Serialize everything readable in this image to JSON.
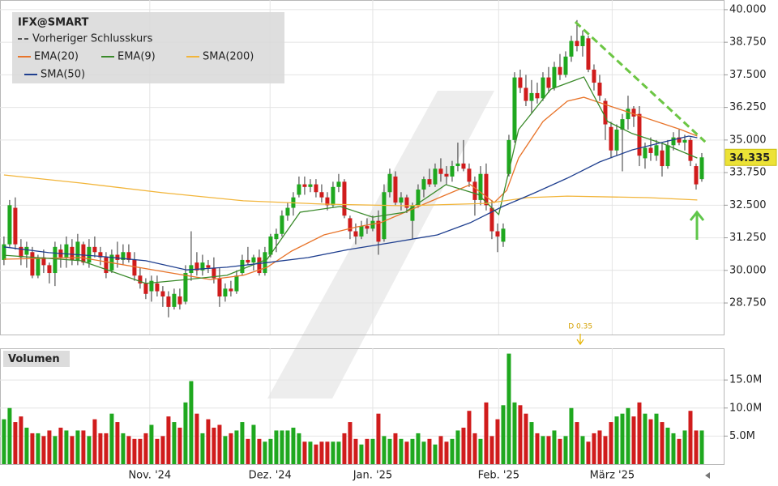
{
  "chart_data": {
    "type": "candlestick",
    "title": "IFX@SMART",
    "up_color": "#1fa81f",
    "down_color": "#d01c1c",
    "xlim": [
      -0.7,
      126.86
    ],
    "xticks": [
      {
        "value": 25.7,
        "label": "Nov. '24"
      },
      {
        "value": 46.9,
        "label": "Dez. '24"
      },
      {
        "value": 65,
        "label": "Jan. '25"
      },
      {
        "value": 87.2,
        "label": "Feb. '25"
      },
      {
        "value": 107.2,
        "label": "März '25"
      }
    ],
    "ylim": [
      27.54,
      40.37
    ],
    "yticks": [
      {
        "value": 28.75,
        "label": "28.750"
      },
      {
        "value": 30,
        "label": "30.000"
      },
      {
        "value": 31.25,
        "label": "31.250"
      },
      {
        "value": 32.5,
        "label": "32.500"
      },
      {
        "value": 33.75,
        "label": "33.750"
      },
      {
        "value": 35,
        "label": "35.000"
      },
      {
        "value": 36.25,
        "label": "36.250"
      },
      {
        "value": 37.5,
        "label": "37.500"
      },
      {
        "value": 38.75,
        "label": "38.750"
      },
      {
        "value": 40,
        "label": "40.000"
      }
    ],
    "grid": true,
    "candles": [
      [
        30.4,
        31.3,
        30.2,
        31.0
      ],
      [
        31.0,
        32.7,
        30.9,
        32.5
      ],
      [
        32.4,
        32.8,
        30.8,
        31.0
      ],
      [
        30.9,
        31.2,
        30.2,
        30.5
      ],
      [
        30.6,
        31.1,
        30.1,
        30.9
      ],
      [
        30.7,
        30.9,
        29.7,
        29.8
      ],
      [
        29.8,
        30.6,
        29.7,
        30.5
      ],
      [
        30.5,
        30.8,
        29.9,
        30.2
      ],
      [
        30.2,
        30.3,
        29.5,
        29.9
      ],
      [
        29.9,
        31.1,
        29.4,
        30.9
      ],
      [
        30.8,
        31.0,
        30.1,
        30.5
      ],
      [
        30.5,
        31.3,
        30.1,
        31.0
      ],
      [
        30.9,
        31.2,
        30.2,
        30.4
      ],
      [
        30.4,
        31.4,
        30.2,
        31.1
      ],
      [
        31.0,
        31.1,
        30.2,
        30.3
      ],
      [
        30.3,
        31.2,
        30.1,
        30.9
      ],
      [
        30.9,
        31.3,
        30.5,
        30.7
      ],
      [
        30.7,
        30.9,
        30.2,
        30.5
      ],
      [
        30.5,
        30.7,
        29.7,
        29.9
      ],
      [
        30.0,
        30.8,
        29.9,
        30.6
      ],
      [
        30.6,
        31.1,
        30.1,
        30.4
      ],
      [
        30.4,
        31.0,
        30.2,
        30.7
      ],
      [
        30.7,
        31.0,
        30.3,
        30.4
      ],
      [
        30.4,
        30.7,
        29.6,
        29.8
      ],
      [
        29.8,
        30.1,
        29.3,
        29.5
      ],
      [
        29.5,
        29.7,
        28.9,
        29.1
      ],
      [
        29.2,
        29.8,
        28.8,
        29.6
      ],
      [
        29.5,
        29.8,
        29.0,
        29.2
      ],
      [
        29.2,
        29.4,
        28.6,
        29.0
      ],
      [
        29.0,
        29.2,
        28.2,
        28.6
      ],
      [
        28.6,
        29.3,
        28.5,
        29.1
      ],
      [
        29.0,
        29.3,
        28.5,
        28.7
      ],
      [
        28.8,
        30.2,
        28.7,
        29.9
      ],
      [
        29.9,
        31.5,
        29.6,
        30.2
      ],
      [
        30.3,
        30.7,
        29.8,
        30.0
      ],
      [
        30.0,
        30.6,
        29.8,
        30.3
      ],
      [
        30.2,
        30.4,
        29.9,
        30.1
      ],
      [
        30.1,
        30.5,
        29.5,
        29.7
      ],
      [
        29.7,
        30.1,
        28.6,
        29.0
      ],
      [
        29.0,
        29.5,
        28.8,
        29.3
      ],
      [
        29.3,
        29.6,
        29.0,
        29.2
      ],
      [
        29.2,
        30.0,
        29.1,
        29.8
      ],
      [
        29.9,
        30.6,
        29.8,
        30.4
      ],
      [
        30.4,
        30.9,
        30.2,
        30.3
      ],
      [
        30.3,
        30.6,
        30.0,
        30.5
      ],
      [
        30.5,
        30.8,
        29.8,
        29.9
      ],
      [
        29.9,
        30.9,
        29.8,
        30.7
      ],
      [
        30.6,
        31.4,
        30.5,
        31.3
      ],
      [
        31.2,
        31.6,
        30.7,
        31.4
      ],
      [
        31.4,
        32.3,
        31.3,
        32.1
      ],
      [
        32.1,
        32.6,
        31.9,
        32.4
      ],
      [
        32.4,
        33.0,
        32.1,
        32.8
      ],
      [
        32.9,
        33.6,
        32.8,
        33.3
      ],
      [
        33.3,
        33.6,
        32.9,
        33.2
      ],
      [
        33.2,
        33.5,
        33.0,
        33.3
      ],
      [
        33.3,
        33.5,
        32.8,
        33.0
      ],
      [
        33.0,
        33.3,
        32.6,
        32.8
      ],
      [
        32.8,
        33.0,
        32.3,
        32.5
      ],
      [
        32.5,
        33.4,
        32.4,
        33.2
      ],
      [
        33.2,
        33.7,
        33.0,
        33.4
      ],
      [
        33.4,
        33.5,
        32.0,
        32.1
      ],
      [
        32.0,
        32.1,
        31.2,
        31.5
      ],
      [
        31.5,
        31.8,
        31.0,
        31.3
      ],
      [
        31.3,
        31.9,
        31.2,
        31.7
      ],
      [
        31.7,
        32.0,
        31.4,
        31.6
      ],
      [
        31.6,
        32.1,
        31.5,
        31.9
      ],
      [
        31.9,
        32.3,
        30.6,
        31.1
      ],
      [
        31.2,
        33.3,
        31.1,
        33.0
      ],
      [
        33.0,
        33.9,
        32.8,
        33.7
      ],
      [
        33.6,
        33.8,
        32.5,
        32.6
      ],
      [
        32.6,
        33.0,
        32.3,
        32.8
      ],
      [
        32.8,
        32.9,
        32.2,
        32.4
      ],
      [
        31.9,
        32.6,
        31.2,
        32.5
      ],
      [
        32.5,
        33.3,
        32.4,
        33.1
      ],
      [
        33.1,
        33.6,
        32.8,
        33.5
      ],
      [
        33.5,
        33.9,
        33.2,
        33.3
      ],
      [
        33.3,
        34.1,
        33.2,
        33.9
      ],
      [
        33.9,
        34.3,
        33.4,
        33.7
      ],
      [
        33.7,
        34.0,
        33.3,
        33.6
      ],
      [
        33.6,
        34.2,
        33.4,
        34.0
      ],
      [
        34.0,
        34.9,
        33.8,
        34.1
      ],
      [
        34.1,
        35.0,
        33.8,
        33.9
      ],
      [
        33.9,
        34.1,
        33.2,
        33.4
      ],
      [
        33.4,
        33.6,
        32.1,
        32.7
      ],
      [
        32.7,
        34.0,
        32.5,
        33.7
      ],
      [
        33.7,
        34.1,
        32.3,
        32.5
      ],
      [
        32.4,
        32.7,
        31.2,
        31.5
      ],
      [
        31.5,
        31.8,
        30.7,
        31.3
      ],
      [
        31.1,
        31.8,
        30.9,
        31.6
      ],
      [
        33.7,
        35.2,
        33.6,
        35.0
      ],
      [
        35.0,
        37.6,
        34.9,
        37.4
      ],
      [
        37.4,
        37.7,
        36.8,
        37.0
      ],
      [
        37.0,
        37.5,
        36.3,
        36.5
      ],
      [
        36.5,
        37.3,
        36.0,
        36.8
      ],
      [
        36.8,
        37.2,
        36.4,
        36.6
      ],
      [
        36.6,
        37.6,
        36.5,
        37.4
      ],
      [
        37.4,
        37.8,
        36.8,
        37.0
      ],
      [
        37.0,
        38.0,
        36.9,
        37.8
      ],
      [
        37.8,
        38.3,
        37.3,
        37.5
      ],
      [
        37.5,
        38.4,
        37.4,
        38.2
      ],
      [
        38.2,
        39.0,
        38.0,
        38.8
      ],
      [
        38.8,
        39.6,
        38.4,
        38.6
      ],
      [
        38.6,
        39.2,
        38.2,
        39.0
      ],
      [
        38.9,
        39.0,
        37.6,
        37.7
      ],
      [
        37.7,
        37.9,
        36.9,
        37.2
      ],
      [
        37.2,
        37.5,
        36.5,
        36.7
      ],
      [
        36.5,
        36.6,
        35.0,
        35.6
      ],
      [
        35.5,
        35.7,
        34.3,
        34.6
      ],
      [
        34.6,
        35.6,
        34.4,
        35.4
      ],
      [
        35.4,
        36.0,
        33.8,
        35.8
      ],
      [
        35.8,
        36.7,
        35.4,
        36.2
      ],
      [
        36.2,
        36.3,
        35.5,
        35.9
      ],
      [
        36.0,
        36.3,
        34.0,
        34.4
      ],
      [
        34.3,
        34.9,
        33.9,
        34.7
      ],
      [
        34.7,
        35.1,
        34.2,
        34.5
      ],
      [
        34.4,
        35.0,
        34.2,
        34.8
      ],
      [
        34.6,
        34.9,
        33.6,
        34.0
      ],
      [
        34.0,
        35.0,
        33.9,
        34.8
      ],
      [
        34.8,
        35.3,
        34.6,
        35.1
      ],
      [
        35.1,
        35.4,
        34.8,
        34.9
      ],
      [
        34.9,
        35.2,
        34.6,
        35.0
      ],
      [
        35.0,
        35.1,
        34.0,
        34.2
      ],
      [
        34.0,
        34.1,
        33.1,
        33.3
      ],
      [
        33.5,
        34.5,
        33.4,
        34.335
      ]
    ],
    "series": [
      {
        "name": "Vorheriger Schlusskurs",
        "color": "#555555",
        "dashed": true
      },
      {
        "name": "EMA(20)",
        "color": "#e8742a",
        "x": [
          0,
          13.6,
          27.9,
          36.4,
          42.2,
          46.4,
          50.7,
          56.4,
          62.2,
          66.4,
          70.7,
          76.4,
          82.2,
          86.4,
          88.6,
          90.7,
          95,
          99.3,
          102.2,
          106.4,
          110.7,
          115,
          119.3,
          122.2
        ],
        "values": [
          30.43,
          30.49,
          29.96,
          29.65,
          29.81,
          30.12,
          30.74,
          31.36,
          31.67,
          31.83,
          32.23,
          32.76,
          33.29,
          32.6,
          33.07,
          34.31,
          35.71,
          36.49,
          36.64,
          36.33,
          36.02,
          35.71,
          35.4,
          35.15
        ]
      },
      {
        "name": "EMA(9)",
        "color": "#3a8a2a",
        "x": [
          0,
          13.6,
          25,
          32.2,
          39.3,
          46.4,
          52.2,
          59.3,
          65,
          70.7,
          77.9,
          83.6,
          87.2,
          90.7,
          96.4,
          102.2,
          106.4,
          110.7,
          116.4,
          122.2
        ],
        "values": [
          30.58,
          30.37,
          29.5,
          29.65,
          29.81,
          30.43,
          32.23,
          32.45,
          32.04,
          32.23,
          33.29,
          32.91,
          32.14,
          35.4,
          36.95,
          37.42,
          35.71,
          35.25,
          34.84,
          34.31
        ]
      },
      {
        "name": "SMA(200)",
        "color": "#f2b53a",
        "x": [
          0,
          13.6,
          27.9,
          42.2,
          56.4,
          70.7,
          85,
          92.2,
          99.3,
          113.6,
          122.2
        ],
        "values": [
          33.66,
          33.35,
          32.98,
          32.67,
          32.54,
          32.48,
          32.57,
          32.79,
          32.85,
          32.79,
          32.7
        ]
      },
      {
        "name": "SMA(50)",
        "color": "#1f3f8f",
        "x": [
          0,
          7.9,
          16.4,
          25,
          32.2,
          39.3,
          46.4,
          53.6,
          60.7,
          67.9,
          76.4,
          82.2,
          87.9,
          93.6,
          99.3,
          105,
          110.7,
          116.4,
          120.7,
          122.2
        ],
        "values": [
          30.9,
          30.68,
          30.55,
          30.37,
          30.02,
          30.12,
          30.3,
          30.49,
          30.8,
          31.05,
          31.36,
          31.83,
          32.45,
          32.98,
          33.54,
          34.16,
          34.62,
          34.93,
          35.15,
          35.09
        ]
      }
    ],
    "trendline": {
      "color": "#6cc644",
      "x": [
        100.7,
        123.6
      ],
      "values": [
        39.53,
        34.93
      ]
    },
    "annotation": {
      "text": "D 0.35",
      "x": 101.6
    },
    "volume": {
      "title": "Volumen",
      "ylim": [
        0,
        20.65
      ],
      "yticks": [
        {
          "value": 5,
          "label": "5.0M"
        },
        {
          "value": 10,
          "label": "10.0M"
        },
        {
          "value": 15,
          "label": "15.0M"
        }
      ],
      "values": [
        8,
        10,
        7.5,
        8.5,
        6.5,
        5.5,
        5.5,
        5,
        6,
        5,
        6.5,
        6,
        5,
        6,
        6,
        5,
        8,
        5.5,
        5.5,
        9,
        7.5,
        5.5,
        5,
        4.5,
        4.5,
        5.5,
        7,
        4.5,
        5,
        8.5,
        7.5,
        6.5,
        11,
        14.8,
        9,
        5.5,
        8,
        6.5,
        7,
        5,
        5.5,
        6,
        7.5,
        4.5,
        7,
        4.5,
        4,
        4.5,
        6,
        6,
        6,
        6.5,
        5.5,
        4,
        4,
        3.5,
        4,
        4,
        4,
        4,
        5.5,
        7.5,
        4.5,
        3.5,
        4.5,
        4.5,
        9,
        5,
        4.5,
        5.5,
        4.5,
        4,
        4.5,
        5.5,
        4,
        4.5,
        3.5,
        5,
        4,
        4.5,
        6,
        6.5,
        9.5,
        5.5,
        4.5,
        11,
        5,
        8,
        10.5,
        19.7,
        11,
        10.5,
        9,
        7.5,
        5.5,
        5,
        5,
        6,
        4.5,
        5,
        10,
        7.5,
        5,
        4,
        5.5,
        6,
        5,
        7.5,
        8.5,
        9,
        10,
        8.5,
        11,
        9,
        8,
        9,
        7.5,
        6.5,
        5.5,
        4.5,
        6,
        9.5,
        6,
        6
      ]
    }
  }
}
